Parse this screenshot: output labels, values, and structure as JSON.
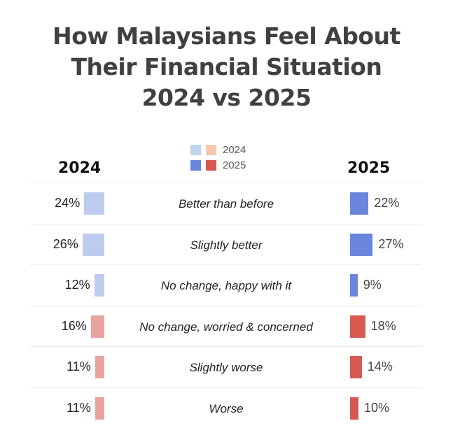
{
  "chart_data": {
    "type": "bar",
    "title": "How Malaysians Feel About Their Financial Situation 2024 vs 2025",
    "title_lines": [
      "How Malaysians Feel About",
      "Their Financial Situation",
      "2024 vs 2025"
    ],
    "left_header": "2024",
    "right_header": "2025",
    "categories": [
      "Better than before",
      "Slightly better",
      "No change, happy with it",
      "No change, worried & concerned",
      "Slightly worse",
      "Worse"
    ],
    "sentiment": [
      "positive",
      "positive",
      "positive",
      "negative",
      "negative",
      "negative"
    ],
    "series": [
      {
        "name": "2024",
        "values": [
          24,
          26,
          12,
          16,
          11,
          11
        ],
        "labels": [
          "24%",
          "26%",
          "12%",
          "16%",
          "11%",
          "11%"
        ]
      },
      {
        "name": "2025",
        "values": [
          22,
          27,
          9,
          18,
          14,
          10
        ],
        "labels": [
          "22%",
          "27%",
          "9%",
          "18%",
          "14%",
          "10%"
        ]
      }
    ],
    "legend": {
      "placement": "top-center",
      "entries": [
        {
          "label": "2024",
          "colors": [
            "#c0d3ec",
            "#f5c8aa"
          ]
        },
        {
          "label": "2025",
          "colors": [
            "#6a85dc",
            "#d65a52"
          ]
        }
      ]
    },
    "colors": {
      "2024_positive": "#bccbee",
      "2024_negative": "#e9a3a1",
      "2025_positive": "#6a85dc",
      "2025_negative": "#d65a52"
    },
    "unit": "%"
  }
}
